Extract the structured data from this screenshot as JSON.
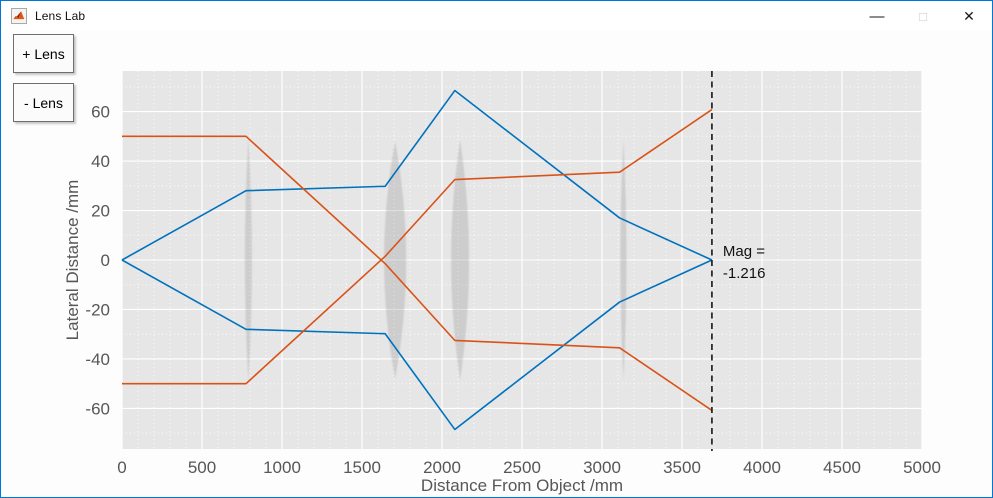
{
  "window": {
    "title": "Lens Lab",
    "controls": {
      "minimize": "—",
      "maximize": "□",
      "close": "✕"
    }
  },
  "toolbar": {
    "add_lens_label": "+ Lens",
    "remove_lens_label": "- Lens"
  },
  "chart_data": {
    "type": "line",
    "title": "",
    "xlabel": "Distance From Object /mm",
    "ylabel": "Lateral Distance /mm",
    "xlim": [
      0,
      5000
    ],
    "ylim": [
      -76.4,
      76.4
    ],
    "xticks": [
      0,
      500,
      1000,
      1500,
      2000,
      2500,
      3000,
      3500,
      4000,
      4500,
      5000
    ],
    "yticks": [
      -60,
      -40,
      -20,
      0,
      20,
      40,
      60
    ],
    "minor_x_step": 100,
    "minor_y_step": 10,
    "grid": true,
    "legend": "none",
    "series": [
      {
        "name": "marginal-ray-upper",
        "color": "#0072BD",
        "points": [
          [
            0,
            0
          ],
          [
            775,
            28
          ],
          [
            1645,
            29.8
          ],
          [
            2080,
            68.5
          ],
          [
            3110,
            17
          ],
          [
            3687,
            0
          ]
        ]
      },
      {
        "name": "marginal-ray-lower",
        "color": "#0072BD",
        "points": [
          [
            0,
            0
          ],
          [
            775,
            -28
          ],
          [
            1645,
            -29.8
          ],
          [
            2080,
            -68.5
          ],
          [
            3110,
            -17
          ],
          [
            3687,
            0
          ]
        ]
      },
      {
        "name": "field-ray-top",
        "color": "#D95319",
        "points": [
          [
            0,
            50
          ],
          [
            775,
            50
          ],
          [
            1645,
            -1.5
          ],
          [
            2080,
            -32.5
          ],
          [
            3110,
            -35.5
          ],
          [
            3687,
            -60.8
          ]
        ]
      },
      {
        "name": "field-ray-bottom",
        "color": "#D95319",
        "points": [
          [
            0,
            -50
          ],
          [
            775,
            -50
          ],
          [
            1645,
            1.5
          ],
          [
            2080,
            32.5
          ],
          [
            3110,
            35.5
          ],
          [
            3687,
            60.8
          ]
        ]
      }
    ],
    "lenses": [
      {
        "x": 790,
        "half_height": 49.5,
        "half_width": 22
      },
      {
        "x": 1707,
        "half_height": 48,
        "half_width": 69
      },
      {
        "x": 2113,
        "half_height": 48.5,
        "half_width": 56
      },
      {
        "x": 3134,
        "half_height": 48.5,
        "half_width": 19
      }
    ],
    "image_plane": {
      "x": 3687,
      "magnification": -1.216,
      "label_lines": [
        "Mag =",
        "-1.216"
      ]
    },
    "colors": {
      "axes_bg": "#e6e6e6",
      "grid": "#ffffff",
      "figure_bg": "#fdfdfd",
      "tick_text": "#575757",
      "annotation_text": "#111111",
      "image_plane_line": "#222222",
      "lens_fill": "#8a8a8a"
    }
  }
}
